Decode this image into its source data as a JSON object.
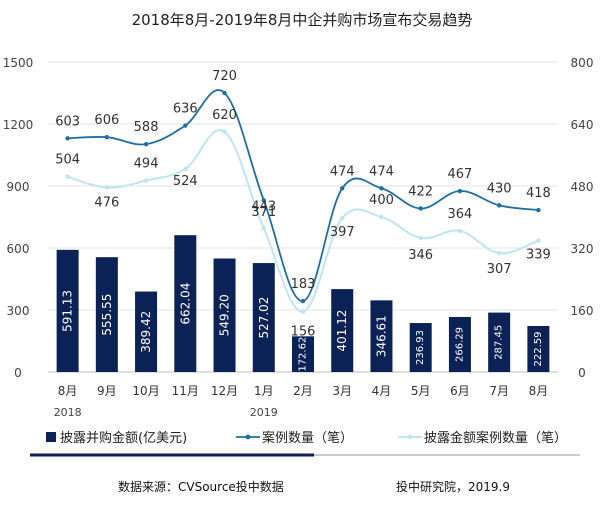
{
  "chart_data": {
    "type": "bar+line",
    "title": "2018年8月-2019年8月中企并购市场宣布交易趋势",
    "categories": [
      "8月",
      "9月",
      "10月",
      "11月",
      "12月",
      "1月",
      "2月",
      "3月",
      "4月",
      "5月",
      "6月",
      "7月",
      "8月"
    ],
    "year_labels": [
      {
        "index": 0,
        "label": "2018"
      },
      {
        "index": 5,
        "label": "2019"
      }
    ],
    "y_left": {
      "min": 0,
      "max": 1500,
      "ticks": [
        "0",
        "300",
        "600",
        "900",
        "1200",
        "1500"
      ]
    },
    "y_right": {
      "min": 0,
      "max": 800,
      "ticks": [
        "0",
        "160",
        "320",
        "480",
        "640",
        "800"
      ]
    },
    "series": [
      {
        "name": "披露并购金额(亿美元)",
        "kind": "bar",
        "axis": "left",
        "color": "#0b2257",
        "values": [
          591.13,
          555.55,
          389.42,
          662.04,
          549.2,
          527.02,
          172.62,
          401.12,
          346.61,
          236.93,
          266.29,
          287.45,
          222.59
        ],
        "labels": [
          "591.13",
          "555.55",
          "389.42",
          "662.04",
          "549.20",
          "527.02",
          "172.62",
          "401.12",
          "346.61",
          "236.93",
          "266.29",
          "287.45",
          "222.59"
        ]
      },
      {
        "name": "案例数量（笔）",
        "kind": "line",
        "axis": "right",
        "color": "#1e6fa3",
        "values": [
          603,
          606,
          588,
          636,
          720,
          443,
          183,
          474,
          474,
          422,
          467,
          430,
          418
        ],
        "labels": [
          "603",
          "606",
          "588",
          "636",
          "720",
          "443",
          "183",
          "474",
          "474",
          "422",
          "467",
          "430",
          "418"
        ]
      },
      {
        "name": "披露金额案例数量（笔）",
        "kind": "line",
        "axis": "right",
        "color": "#bfe4f2",
        "values": [
          504,
          476,
          494,
          524,
          620,
          371,
          156,
          397,
          400,
          346,
          364,
          307,
          339
        ],
        "labels": [
          "504",
          "476",
          "494",
          "524",
          "620",
          "371",
          "156",
          "397",
          "400",
          "346",
          "364",
          "307",
          "339"
        ]
      }
    ]
  },
  "footer": {
    "source": "数据来源：CVSource投中数据",
    "credit": "投中研究院，2019.9"
  }
}
